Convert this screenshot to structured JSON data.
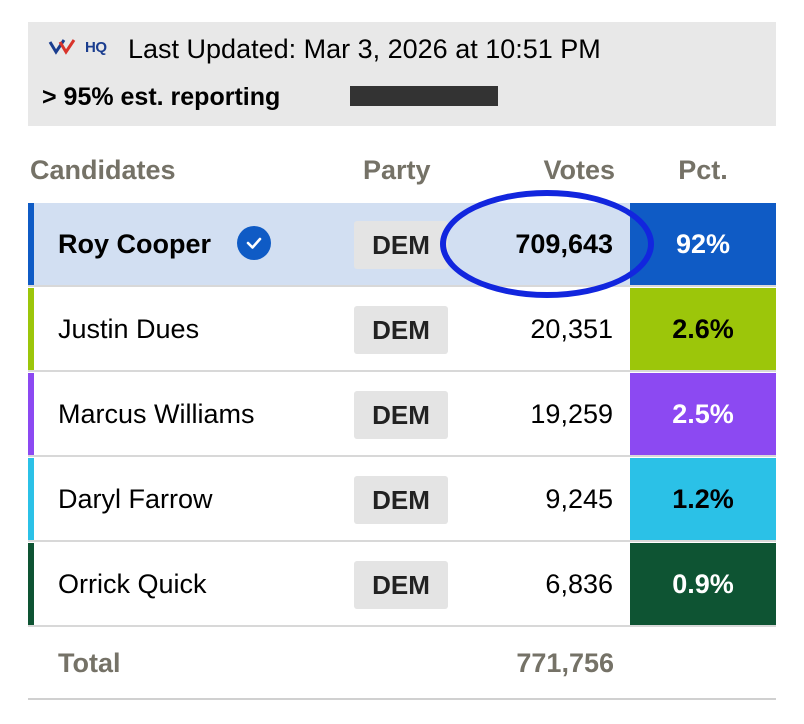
{
  "header": {
    "logo_text": "HQ",
    "updated": "Last Updated: Mar 3, 2026 at 10:51 PM",
    "reporting": "> 95% est. reporting"
  },
  "table": {
    "columns": [
      "Candidates",
      "Party",
      "Votes",
      "Pct."
    ],
    "rows": [
      {
        "name": "Roy Cooper",
        "party": "DEM",
        "votes": "709,643",
        "pct": "92%",
        "color": "#0f5bc5",
        "text_color": "#ffffff",
        "winner": true
      },
      {
        "name": "Justin Dues",
        "party": "DEM",
        "votes": "20,351",
        "pct": "2.6%",
        "color": "#9cc60a",
        "text_color": "#000000",
        "winner": false
      },
      {
        "name": "Marcus Williams",
        "party": "DEM",
        "votes": "19,259",
        "pct": "2.5%",
        "color": "#8c49f2",
        "text_color": "#ffffff",
        "winner": false
      },
      {
        "name": "Daryl Farrow",
        "party": "DEM",
        "votes": "9,245",
        "pct": "1.2%",
        "color": "#2bc1e7",
        "text_color": "#000000",
        "winner": false
      },
      {
        "name": "Orrick Quick",
        "party": "DEM",
        "votes": "6,836",
        "pct": "0.9%",
        "color": "#0e5433",
        "text_color": "#ffffff",
        "winner": false
      }
    ],
    "total_label": "Total",
    "total_votes": "771,756"
  },
  "colors": {
    "header_bg": "#e8e8e8",
    "lead_row_bg": "#d2dff2",
    "annotation_circle": "#1226de"
  }
}
